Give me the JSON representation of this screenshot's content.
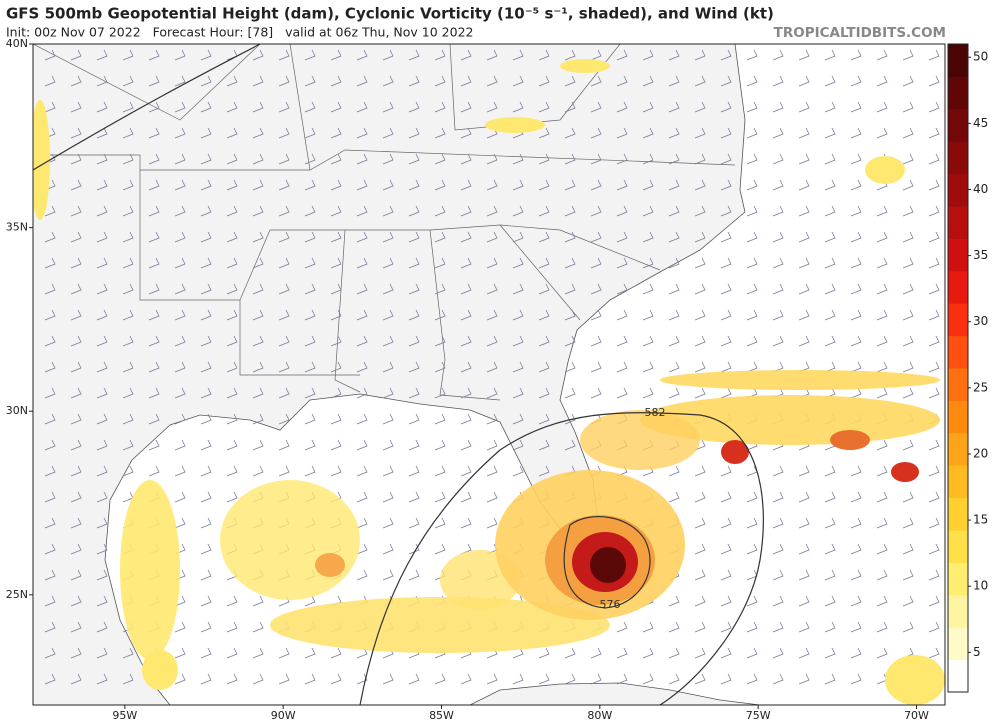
{
  "header": {
    "title": "GFS 500mb Geopotential Height (dam), Cyclonic Vorticity (10⁻⁵ s⁻¹, shaded), and Wind (kt)",
    "subtitle": "Init: 00z Nov 07 2022   Forecast Hour: [78]   valid at 06z Thu, Nov 10 2022",
    "site": "TROPICALTIDBITS.COM"
  },
  "map": {
    "lonlim": [
      -97.9,
      -69.1
    ],
    "latlim": [
      22,
      40
    ],
    "lon_ticks": [
      {
        "value": -95,
        "label": "95W"
      },
      {
        "value": -90,
        "label": "90W"
      },
      {
        "value": -85,
        "label": "85W"
      },
      {
        "value": -80,
        "label": "80W"
      },
      {
        "value": -75,
        "label": "75W"
      },
      {
        "value": -70,
        "label": "70W"
      }
    ],
    "lat_ticks": [
      {
        "value": 40,
        "label": "40N"
      },
      {
        "value": 35,
        "label": "35N"
      },
      {
        "value": 30,
        "label": "30N"
      },
      {
        "value": 25,
        "label": "25N"
      }
    ],
    "contour_labels": [
      "582",
      "576"
    ]
  },
  "colorbar": {
    "lim": [
      2,
      51
    ],
    "ticks": [
      5,
      10,
      15,
      20,
      25,
      30,
      35,
      40,
      45,
      50
    ]
  }
}
